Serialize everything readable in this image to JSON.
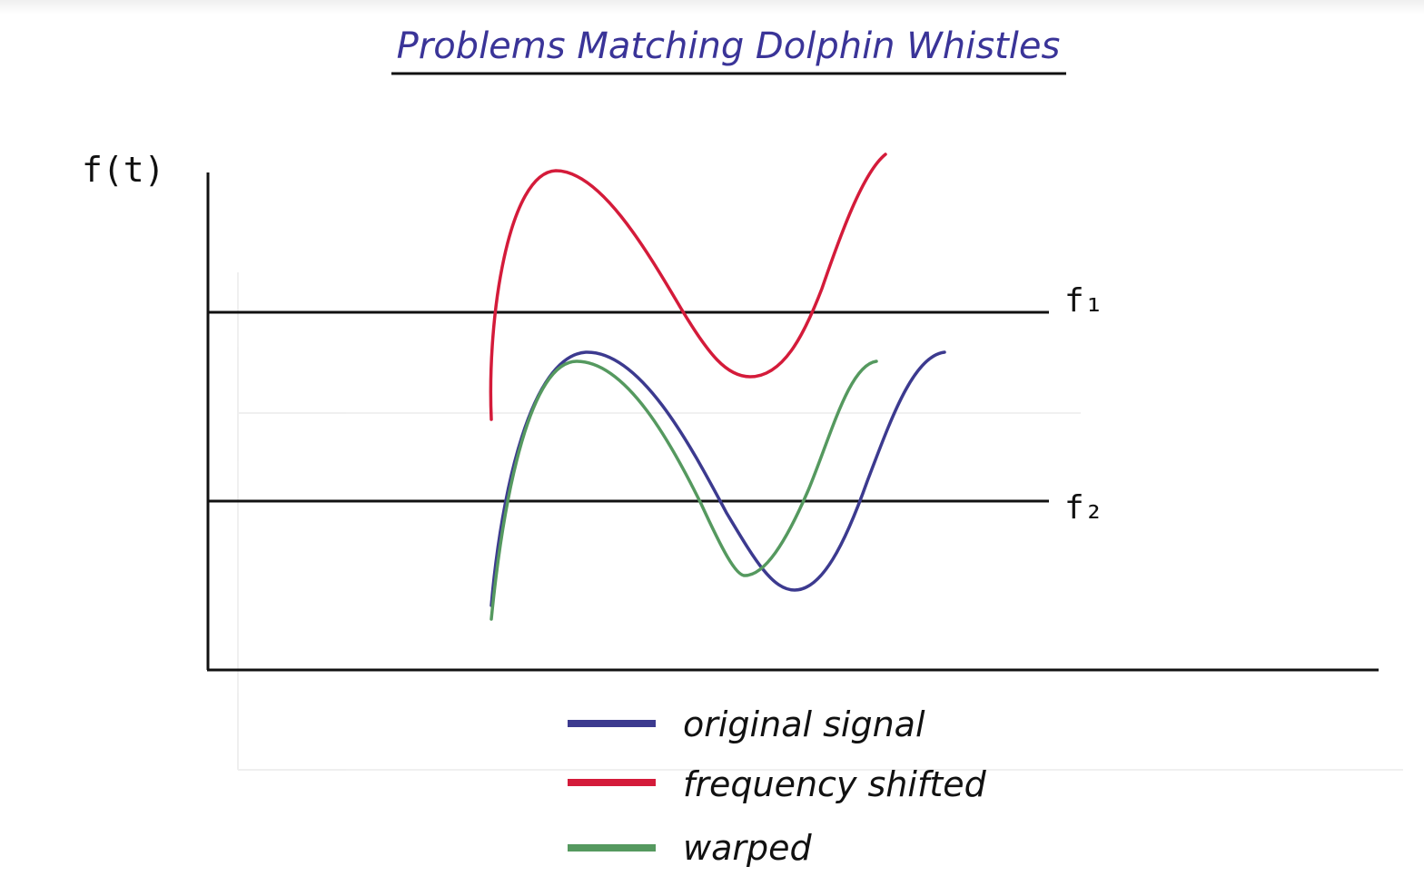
{
  "title": "Problems Matching Dolphin Whistles",
  "y_axis_label": "f(t)",
  "reference_lines": [
    {
      "label": "f₁"
    },
    {
      "label": "f₂"
    }
  ],
  "legend": [
    {
      "label": "original signal",
      "color": "#3c3a8f"
    },
    {
      "label": "frequency shifted",
      "color": "#d41b3a"
    },
    {
      "label": "warped",
      "color": "#55995f"
    }
  ],
  "colors": {
    "original": "#3c3a8f",
    "shifted": "#d41b3a",
    "warped": "#55995f",
    "title": "#3a3498",
    "axis": "#111111"
  }
}
